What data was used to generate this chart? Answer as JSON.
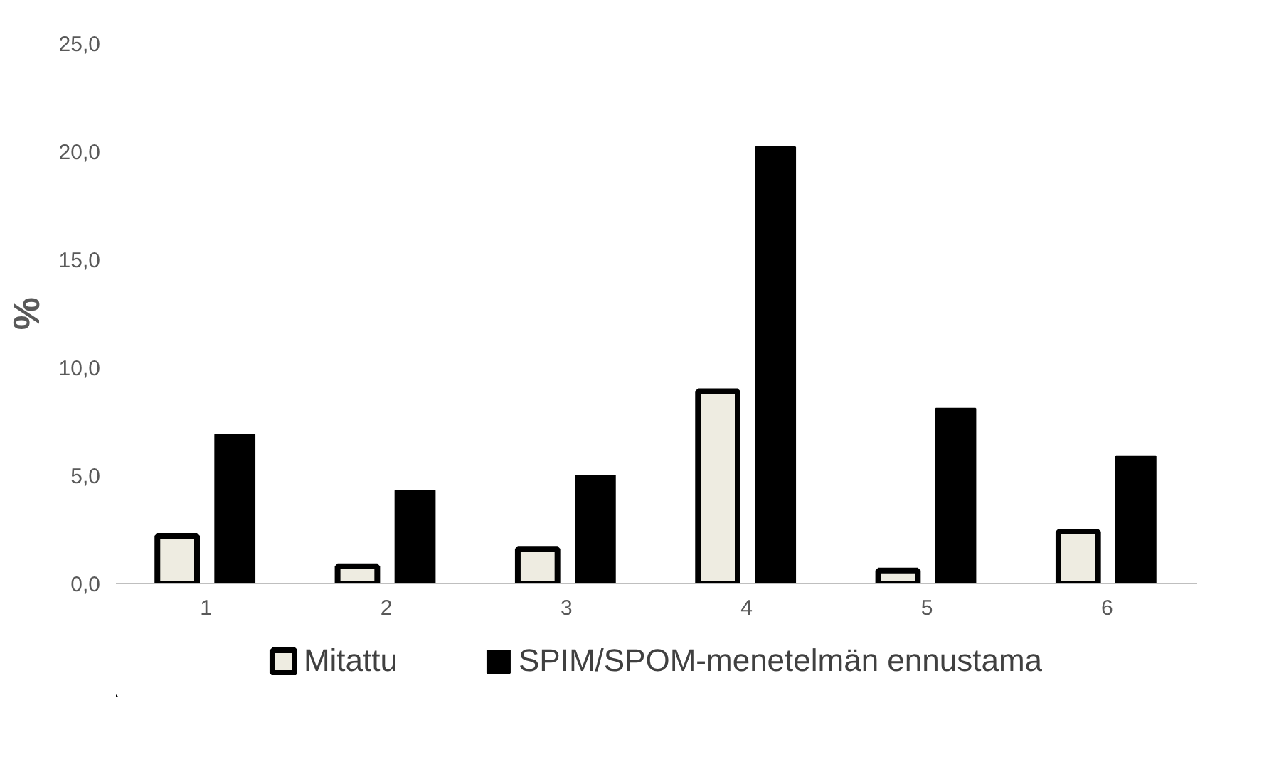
{
  "chart_data": {
    "type": "bar",
    "ylabel": "%",
    "categories": [
      "1",
      "2",
      "3",
      "4",
      "5",
      "6"
    ],
    "series": [
      {
        "name": "Mitattu",
        "color": "#eeece1",
        "values": [
          2.2,
          0.8,
          1.6,
          8.9,
          0.6,
          2.4
        ]
      },
      {
        "name": "SPIM/SPOM-menetelmän ennustama",
        "color": "#000000",
        "values": [
          6.9,
          4.3,
          5.0,
          20.2,
          8.1,
          5.9
        ]
      }
    ],
    "ylim": [
      0,
      25
    ],
    "yticks": [
      {
        "value": 0,
        "label": "0,0"
      },
      {
        "value": 5,
        "label": "5,0"
      },
      {
        "value": 10,
        "label": "10,0"
      },
      {
        "value": 15,
        "label": "15,0"
      },
      {
        "value": 20,
        "label": "20,0"
      },
      {
        "value": 25,
        "label": "25,0"
      }
    ],
    "grid": false,
    "legend": "bottom"
  }
}
